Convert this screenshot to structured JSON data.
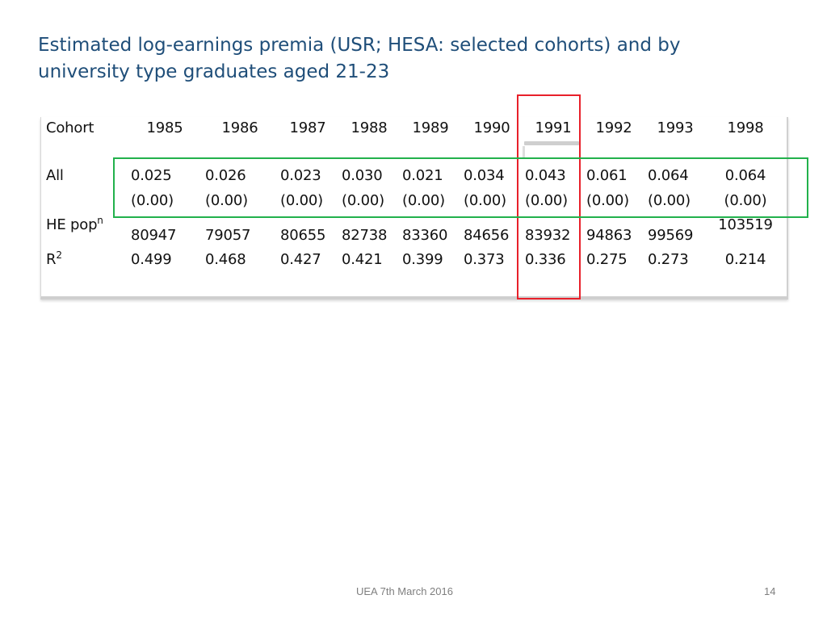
{
  "title": {
    "line1": "Estimated log-earnings premia (USR; HESA: selected cohorts) and by",
    "line2": "university type graduates aged 21-23"
  },
  "table": {
    "row_labels": {
      "cohort": "Cohort",
      "all": "All",
      "hepop": "HE pop",
      "hepop_sup": "n",
      "r2": "R",
      "r2_sup": "2"
    },
    "cohorts": [
      "1985",
      "1986",
      "1987",
      "1988",
      "1989",
      "1990",
      "1991",
      "1992",
      "1993",
      "1998"
    ],
    "all": [
      "0.025",
      "0.026",
      "0.023",
      "0.030",
      "0.021",
      "0.034",
      "0.043",
      "0.061",
      "0.064",
      "0.064"
    ],
    "se": [
      "(0.00)",
      "(0.00)",
      "(0.00)",
      "(0.00)",
      "(0.00)",
      "(0.00)",
      "(0.00)",
      "(0.00)",
      "(0.00)",
      "(0.00)"
    ],
    "hepop": [
      "80947",
      "79057",
      "80655",
      "82738",
      "83360",
      "84656",
      "83932",
      "94863",
      "99569",
      "103519"
    ],
    "r2": [
      "0.499",
      "0.468",
      "0.427",
      "0.421",
      "0.399",
      "0.373",
      "0.336",
      "0.275",
      "0.273",
      "0.214"
    ]
  },
  "highlights": {
    "column_color": "#e8202a",
    "row_color": "#22b14c"
  },
  "footer": {
    "center": "UEA 7th March 2016",
    "page": "14"
  }
}
